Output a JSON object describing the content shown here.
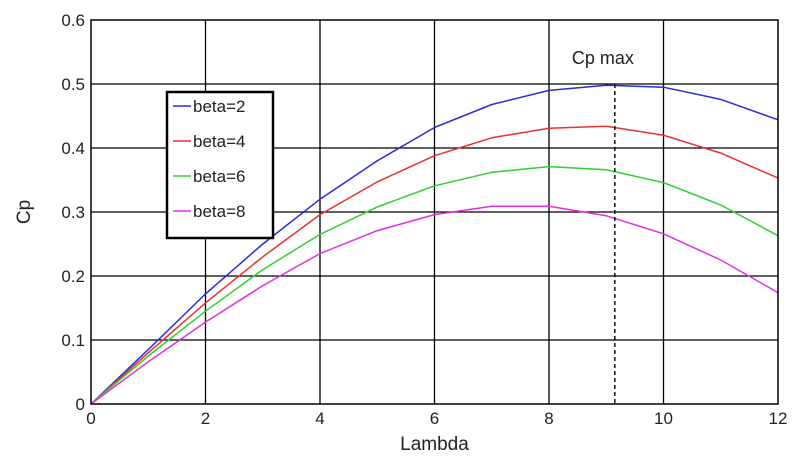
{
  "chart_data": {
    "type": "line",
    "title": "",
    "xlabel": "Lambda",
    "ylabel": "Cp",
    "xlim": [
      0,
      12
    ],
    "ylim": [
      0,
      0.6
    ],
    "xticks": [
      0,
      2,
      4,
      6,
      8,
      10,
      12
    ],
    "yticks": [
      0,
      0.1,
      0.2,
      0.3,
      0.4,
      0.5,
      0.6
    ],
    "grid": true,
    "legend_position": "upper-left",
    "x": [
      0,
      1,
      2,
      3,
      4,
      5,
      6,
      7,
      8,
      9,
      10,
      11,
      12
    ],
    "series": [
      {
        "name": "beta=2",
        "color": "#2b2bd8",
        "values": [
          0,
          0.085,
          0.172,
          0.25,
          0.32,
          0.38,
          0.432,
          0.468,
          0.49,
          0.498,
          0.495,
          0.476,
          0.444
        ]
      },
      {
        "name": "beta=4",
        "color": "#e83030",
        "values": [
          0,
          0.08,
          0.158,
          0.23,
          0.296,
          0.347,
          0.388,
          0.416,
          0.431,
          0.434,
          0.42,
          0.392,
          0.353
        ]
      },
      {
        "name": "beta=6",
        "color": "#30d030",
        "values": [
          0,
          0.075,
          0.145,
          0.21,
          0.265,
          0.308,
          0.341,
          0.362,
          0.371,
          0.366,
          0.346,
          0.311,
          0.263
        ]
      },
      {
        "name": "beta=8",
        "color": "#e030e0",
        "values": [
          0,
          0.066,
          0.128,
          0.185,
          0.235,
          0.271,
          0.296,
          0.309,
          0.309,
          0.294,
          0.266,
          0.225,
          0.174
        ]
      }
    ],
    "annotations": [
      {
        "text": "Cp max",
        "x": 9.15,
        "y": 0.5,
        "style": "dashed-vertical-line"
      }
    ]
  }
}
